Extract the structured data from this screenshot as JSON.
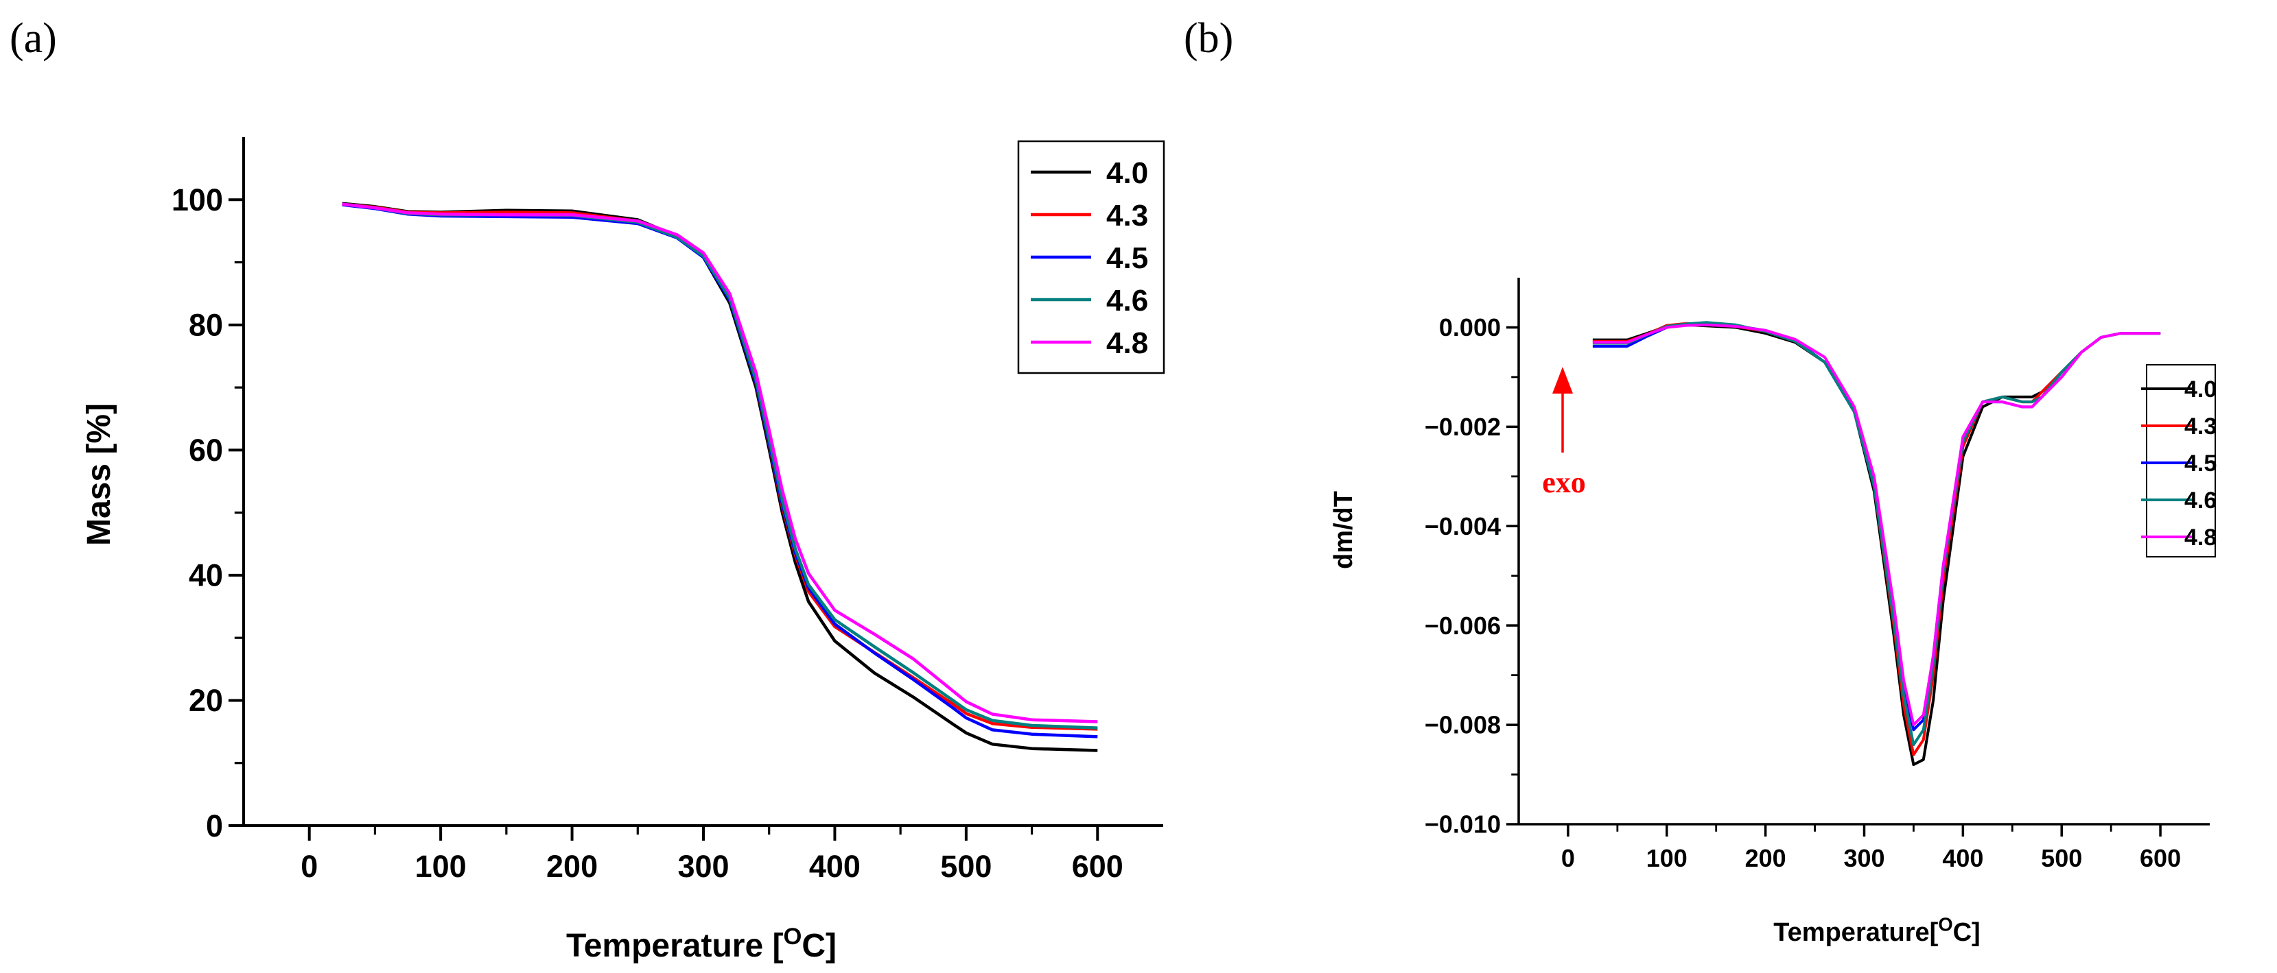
{
  "panels": {
    "a": {
      "label": "(a)"
    },
    "b": {
      "label": "(b)"
    }
  },
  "chart_data": [
    {
      "type": "line",
      "title": "",
      "xlabel": "Temperature",
      "xunit": "C",
      "ylabel": "Mass [%]",
      "xlim": [
        -50,
        650
      ],
      "ylim": [
        0,
        110
      ],
      "xticks": [
        "0",
        "100",
        "200",
        "300",
        "400",
        "500",
        "600"
      ],
      "yticks": [
        "0",
        "20",
        "40",
        "60",
        "80",
        "100"
      ],
      "legend_position": "top-right",
      "x": [
        25,
        50,
        75,
        100,
        150,
        200,
        250,
        280,
        300,
        320,
        340,
        350,
        360,
        370,
        380,
        400,
        430,
        460,
        490,
        500,
        520,
        550,
        600
      ],
      "series": [
        {
          "name": "4.0",
          "color": "#000000",
          "values": [
            99.4,
            98.9,
            98.1,
            98.0,
            98.3,
            98.2,
            96.8,
            94.2,
            90.8,
            83.5,
            70.0,
            60.2,
            50.0,
            42.0,
            35.8,
            29.5,
            24.4,
            20.5,
            16.2,
            14.8,
            13.0,
            12.3,
            12.0
          ]
        },
        {
          "name": "4.3",
          "color": "#ff0000",
          "values": [
            99.3,
            98.8,
            98.0,
            97.9,
            98.0,
            97.9,
            96.6,
            94.2,
            91.0,
            84.0,
            70.7,
            61.0,
            51.0,
            43.2,
            37.4,
            31.8,
            27.7,
            23.6,
            19.4,
            17.9,
            16.3,
            15.7,
            15.4
          ]
        },
        {
          "name": "4.5",
          "color": "#0000ff",
          "values": [
            99.2,
            98.6,
            97.7,
            97.4,
            97.3,
            97.2,
            96.2,
            93.9,
            90.8,
            84.0,
            70.8,
            61.2,
            51.4,
            43.6,
            38.0,
            32.2,
            27.6,
            23.3,
            18.8,
            17.2,
            15.3,
            14.6,
            14.2
          ]
        },
        {
          "name": "4.6",
          "color": "#008080",
          "values": [
            99.3,
            98.7,
            97.8,
            97.6,
            97.6,
            97.5,
            96.4,
            94.0,
            91.0,
            84.3,
            71.2,
            61.8,
            52.0,
            44.2,
            38.5,
            32.9,
            28.6,
            24.4,
            20.0,
            18.5,
            16.8,
            16.0,
            15.6
          ]
        },
        {
          "name": "4.8",
          "color": "#ff00ff",
          "values": [
            99.3,
            98.7,
            97.9,
            97.7,
            97.6,
            97.6,
            96.6,
            94.4,
            91.5,
            85.0,
            72.4,
            63.2,
            53.6,
            45.8,
            40.3,
            34.4,
            30.6,
            26.6,
            21.5,
            19.8,
            17.8,
            16.9,
            16.6
          ]
        }
      ]
    },
    {
      "type": "line",
      "title": "",
      "xlabel": "Temperature",
      "xunit": "C",
      "ylabel": "dm/dT",
      "xlim": [
        -50,
        650
      ],
      "ylim": [
        -0.01,
        0.001
      ],
      "xticks": [
        "0",
        "100",
        "200",
        "300",
        "400",
        "500",
        "600"
      ],
      "yticks": [
        "0.000",
        "−0.002",
        "−0.004",
        "−0.006",
        "−0.008",
        "−0.010"
      ],
      "legend_position": "right",
      "annotation": {
        "text": "exo",
        "direction": "up",
        "color": "#ff0000"
      },
      "x": [
        25,
        60,
        80,
        100,
        120,
        140,
        170,
        200,
        230,
        260,
        290,
        310,
        330,
        340,
        350,
        360,
        370,
        380,
        400,
        420,
        440,
        460,
        470,
        480,
        500,
        520,
        540,
        560,
        580,
        600
      ],
      "series": [
        {
          "name": "4.0",
          "color": "#000000",
          "values": [
            -0.00025,
            -0.00025,
            -0.00012,
            2e-05,
            5e-05,
            3e-05,
            0.0,
            -0.00012,
            -0.0003,
            -0.0007,
            -0.0017,
            -0.0033,
            -0.0062,
            -0.0078,
            -0.0088,
            -0.0087,
            -0.0075,
            -0.0055,
            -0.0026,
            -0.0016,
            -0.0014,
            -0.0014,
            -0.0014,
            -0.0013,
            -0.0009,
            -0.0005,
            -0.0002,
            -0.00012,
            -0.00012,
            -0.00012
          ]
        },
        {
          "name": "4.3",
          "color": "#ff0000",
          "values": [
            -0.00028,
            -0.00028,
            -0.00014,
            4e-05,
            8e-05,
            6e-05,
            2e-05,
            -8e-05,
            -0.00028,
            -0.0007,
            -0.0017,
            -0.0032,
            -0.006,
            -0.0076,
            -0.0086,
            -0.0083,
            -0.007,
            -0.0051,
            -0.0024,
            -0.0015,
            -0.0014,
            -0.0015,
            -0.0015,
            -0.0013,
            -0.0009,
            -0.0005,
            -0.0002,
            -0.00012,
            -0.00012,
            -0.00012
          ]
        },
        {
          "name": "4.5",
          "color": "#0000ff",
          "values": [
            -0.00038,
            -0.00038,
            -0.00018,
            0.0,
            6e-05,
            7e-05,
            3e-05,
            -6e-05,
            -0.00026,
            -0.0007,
            -0.0017,
            -0.0032,
            -0.0058,
            -0.0072,
            -0.0081,
            -0.0079,
            -0.0066,
            -0.0048,
            -0.0023,
            -0.0015,
            -0.0015,
            -0.0016,
            -0.0016,
            -0.0014,
            -0.001,
            -0.0005,
            -0.0002,
            -0.00012,
            -0.00012,
            -0.00012
          ]
        },
        {
          "name": "4.6",
          "color": "#008080",
          "values": [
            -0.00032,
            -0.00032,
            -0.00015,
            2e-05,
            7e-05,
            0.0001,
            5e-05,
            -8e-05,
            -0.00028,
            -0.0007,
            -0.0017,
            -0.0032,
            -0.0059,
            -0.0074,
            -0.0084,
            -0.0081,
            -0.0068,
            -0.0049,
            -0.0023,
            -0.0015,
            -0.0014,
            -0.0015,
            -0.0015,
            -0.0014,
            -0.0009,
            -0.0005,
            -0.0002,
            -0.00012,
            -0.00012,
            -0.00012
          ]
        },
        {
          "name": "4.8",
          "color": "#ff00ff",
          "values": [
            -0.0003,
            -0.0003,
            -0.00014,
            0.0,
            4e-05,
            5e-05,
            2e-05,
            -6e-05,
            -0.00024,
            -0.0006,
            -0.0016,
            -0.003,
            -0.0056,
            -0.0071,
            -0.008,
            -0.0078,
            -0.0066,
            -0.0048,
            -0.0022,
            -0.0015,
            -0.0015,
            -0.0016,
            -0.0016,
            -0.0014,
            -0.001,
            -0.0005,
            -0.0002,
            -0.00012,
            -0.00012,
            -0.00012
          ]
        }
      ]
    }
  ]
}
